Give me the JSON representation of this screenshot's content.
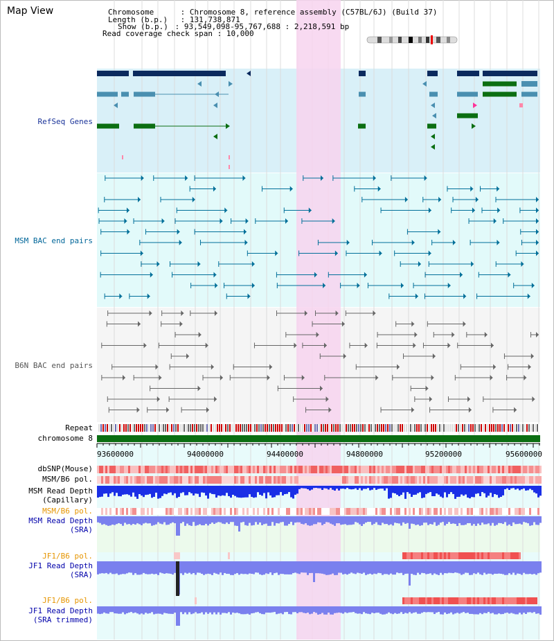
{
  "page": {
    "title": "Map View"
  },
  "header": {
    "rows": [
      {
        "key": "Chromosome",
        "sep": " : ",
        "value": "Chromosome 8, reference assembly (C57BL/6J) (Build 37)"
      },
      {
        "key": "Length (b.p.)",
        "sep": " : ",
        "value": "131,738,871"
      },
      {
        "key": "Show (b.p.)",
        "sep": " : ",
        "value": "93,549,098-95,767,688 : 2,218,591 bp"
      },
      {
        "key": "Read coverage check span",
        "sep": " : ",
        "value": "10,000"
      }
    ]
  },
  "tracks": {
    "refseq": {
      "label": "RefSeq Genes",
      "color": "#1a3399"
    },
    "msm_bac": {
      "label": "MSM BAC end pairs",
      "color": "#006699"
    },
    "b6n_bac": {
      "label": "B6N BAC end pairs",
      "color": "#555555"
    },
    "repeat": {
      "label": "Repeat"
    },
    "chromosome": {
      "label": "chromosome 8"
    },
    "dbsnp": {
      "label": "dbSNP(Mouse)"
    },
    "msm_b6_pol": {
      "label": "MSM/B6 pol."
    },
    "msm_depth_cap": {
      "label1": "MSM Read Depth",
      "label2": "(Capillary)"
    },
    "msm_b6_pol2": {
      "label": "MSM/B6 pol.",
      "color": "#e69500"
    },
    "msm_depth_sra": {
      "label1": "MSM Read Depth",
      "label2": "(SRA)",
      "color": "#0000aa"
    },
    "jf1_b6_pol": {
      "label": "JF1/B6 pol.",
      "color": "#e69500"
    },
    "jf1_depth_sra": {
      "label1": "JF1 Read Depth",
      "label2": "(SRA)",
      "color": "#0000aa"
    },
    "jf1_b6_pol2": {
      "label": "JF1/B6 pol.",
      "color": "#e69500"
    },
    "jf1_depth_trim": {
      "label1": "JF1 Read Depth",
      "label2": "(SRA trimmed)",
      "color": "#0000aa"
    }
  },
  "axis": {
    "ticks": [
      "93600000",
      "94000000",
      "94400000",
      "94800000",
      "95200000",
      "95600000"
    ]
  },
  "colors": {
    "highlight": "#f8d8ef",
    "refseq_bg": "#d9f0f8",
    "msm_bg": "#e2fafa",
    "gene_dark": "#0b2a5e",
    "gene_mid": "#4a8fb0",
    "gene_green": "#0b6e12",
    "chrom_bar": "#0b6e12",
    "depth_blue": "#1a2fe6"
  }
}
